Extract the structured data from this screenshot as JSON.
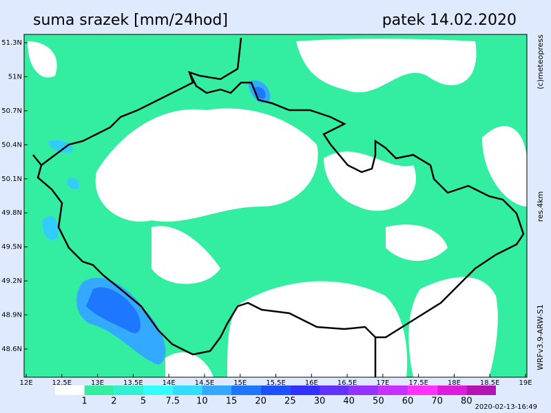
{
  "header": {
    "title": "suma srazek [mm/24hod]",
    "date": "patek 14.02.2020"
  },
  "map": {
    "lon_ticks": [
      "12E",
      "12.5E",
      "13E",
      "13.5E",
      "14E",
      "14.5E",
      "15E",
      "15.5E",
      "16E",
      "16.5E",
      "17E",
      "17.5E",
      "18E",
      "18.5E",
      "19E"
    ],
    "lat_ticks": [
      "51.3N",
      "51N",
      "50.7N",
      "50.4N",
      "50.1N",
      "49.8N",
      "49.5N",
      "49.2N",
      "48.9N",
      "48.6N"
    ]
  },
  "colorbar": {
    "labels": [
      "1",
      "2",
      "5",
      "7.5",
      "10",
      "15",
      "20",
      "25",
      "30",
      "40",
      "50",
      "60",
      "70",
      "80"
    ]
  },
  "side": [
    "(c)meteopress",
    "res.4km",
    "WRFv3.9-ARW-S1"
  ],
  "timestamp": "2020-02-13-16:49"
}
